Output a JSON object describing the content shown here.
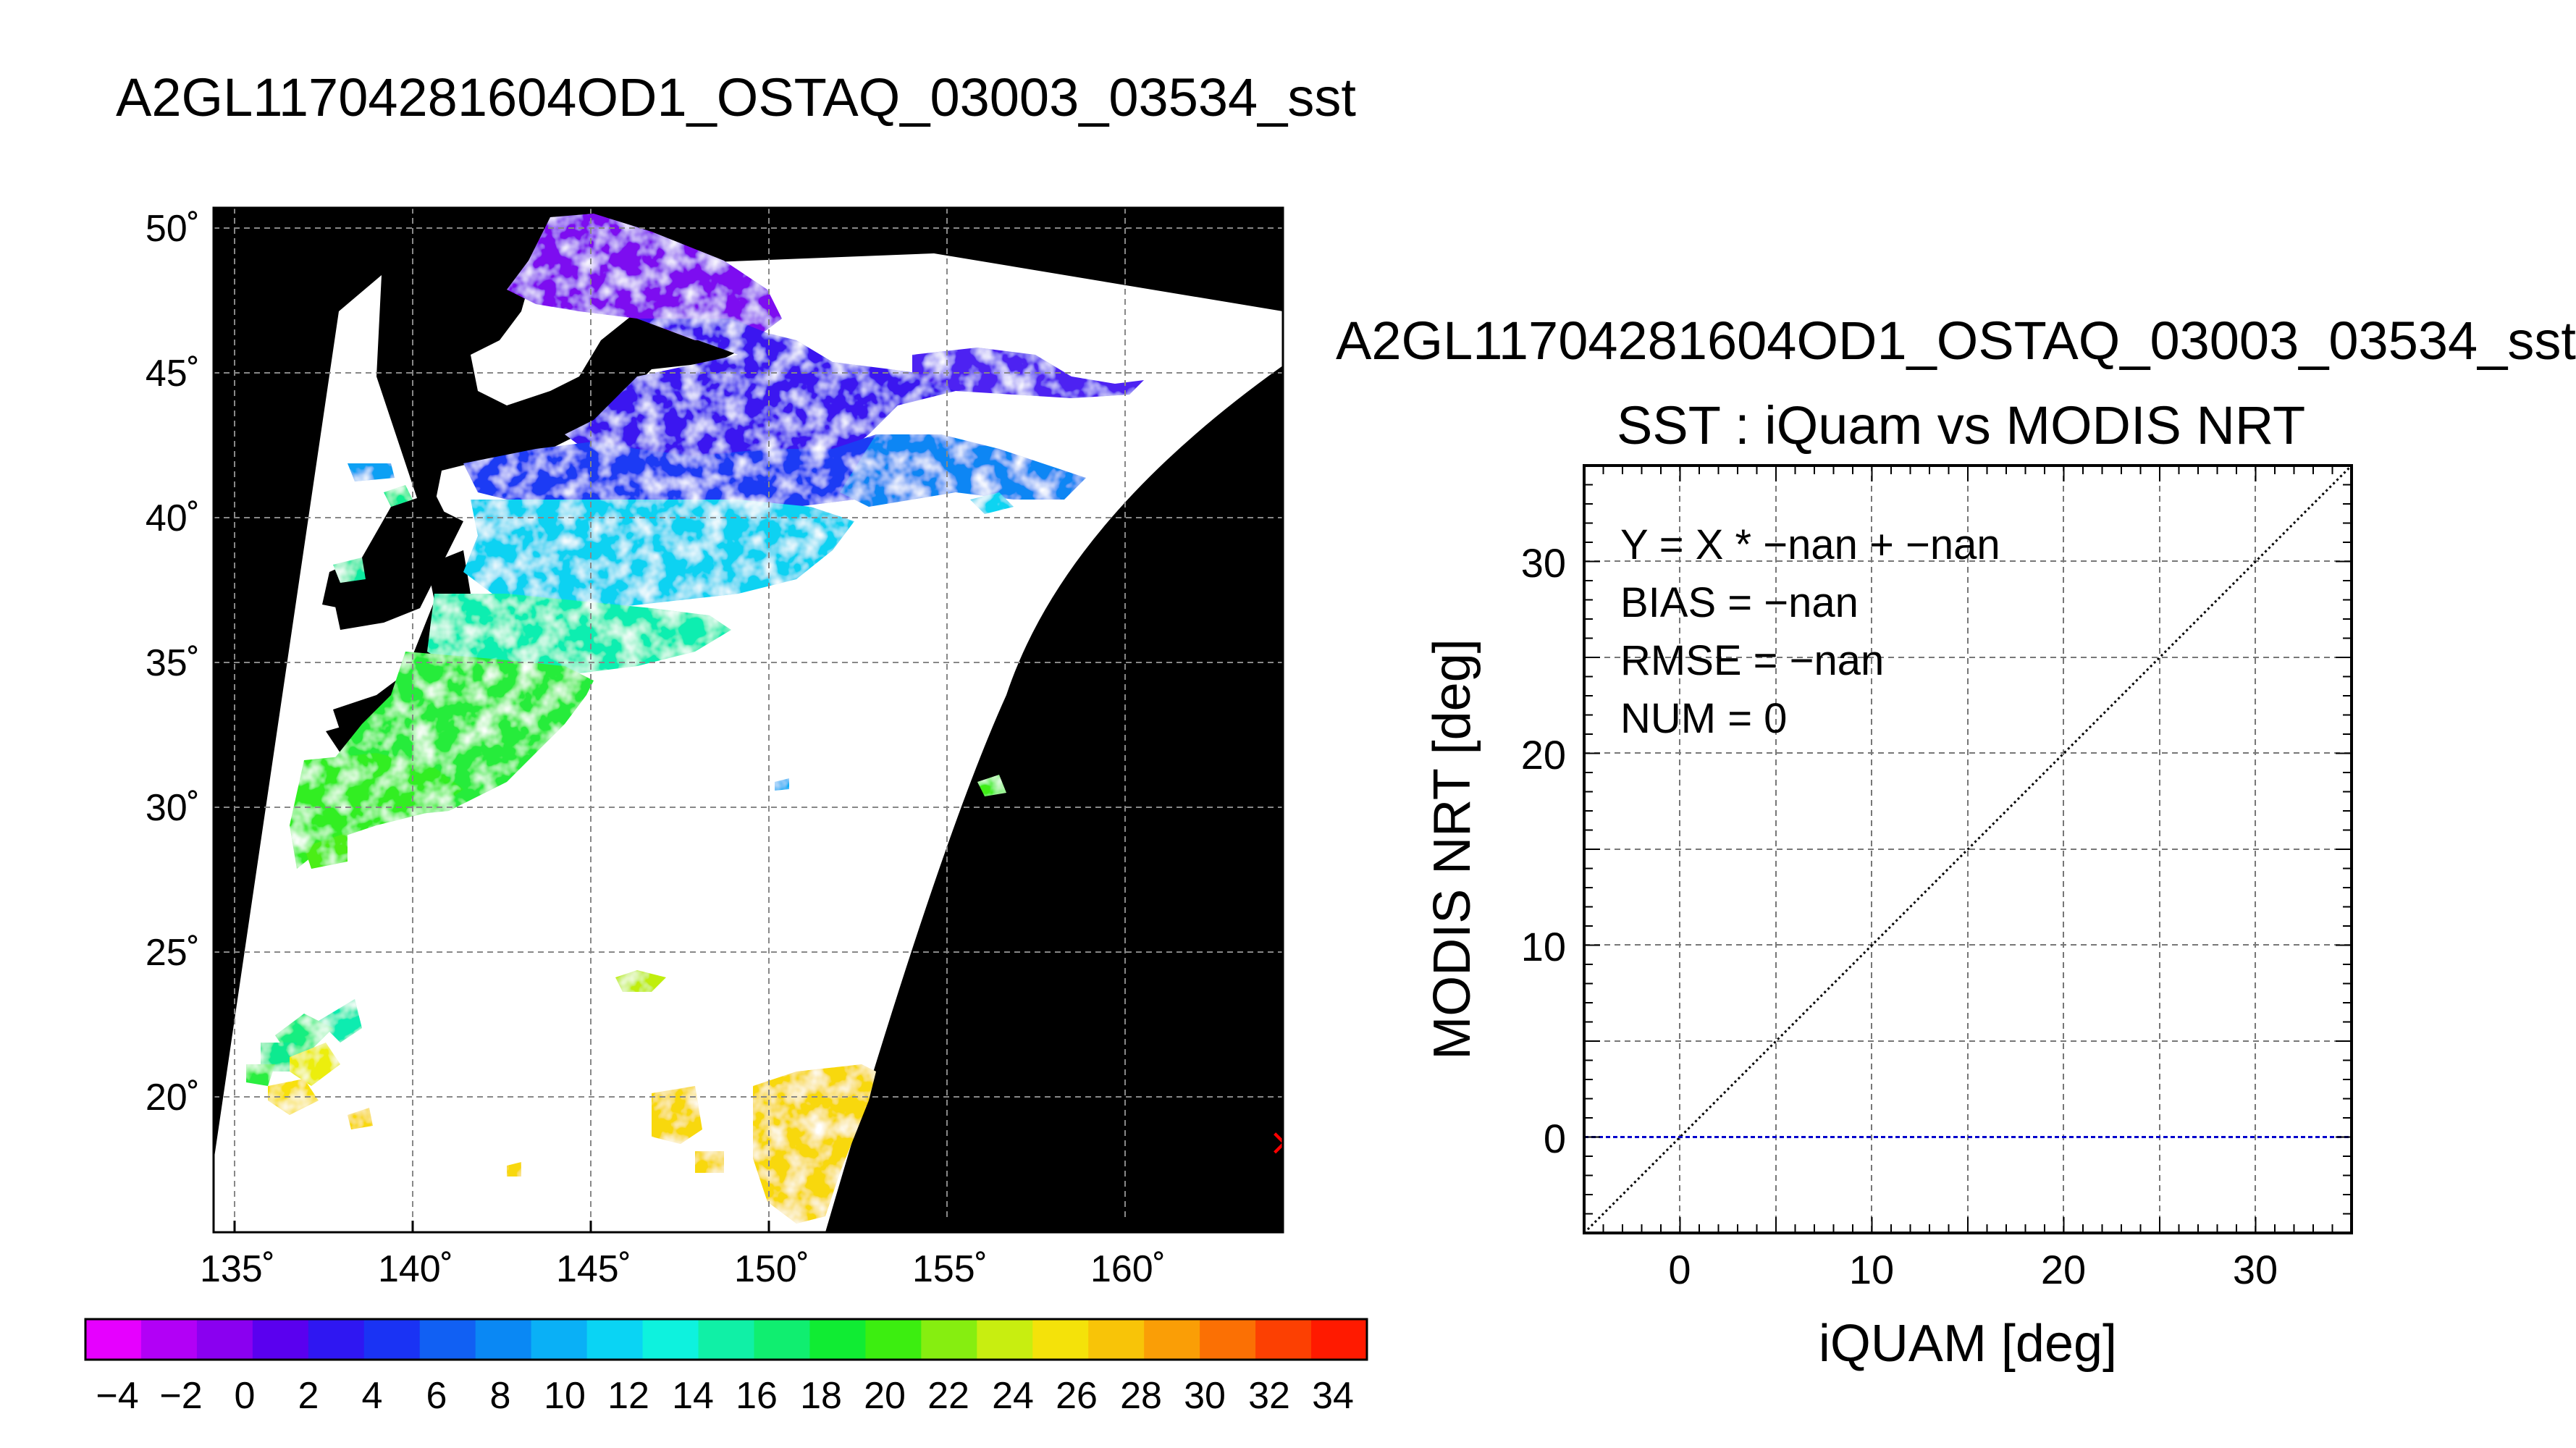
{
  "map_title": "A2GL11704281604OD1_OSTAQ_03003_03534_sst",
  "right_title": "A2GL11704281604OD1_OSTAQ_03003_03534_sst",
  "chart_data": [
    {
      "type": "heatmap",
      "title": "A2GL11704281604OD1_OSTAQ_03003_03534_sst",
      "xlabel": "",
      "ylabel": "",
      "x_ticks": [
        "135˚",
        "140˚",
        "145˚",
        "150˚",
        "155˚",
        "160˚"
      ],
      "y_ticks": [
        "50˚",
        "45˚",
        "40˚",
        "35˚",
        "30˚",
        "25˚",
        "20˚"
      ],
      "xlim": [
        134.5,
        164.5
      ],
      "ylim": [
        15.5,
        50.8
      ],
      "grid": true,
      "colorbar": {
        "ticks": [
          "−4",
          "−2",
          "0",
          "2",
          "4",
          "6",
          "8",
          "10",
          "12",
          "14",
          "16",
          "18",
          "20",
          "22",
          "24",
          "26",
          "28",
          "30",
          "32",
          "34"
        ],
        "range": [
          -5,
          35
        ],
        "colors": [
          "#e600ff",
          "#b200f6",
          "#8a00f0",
          "#5a00ef",
          "#2f17f2",
          "#1a33f4",
          "#1160f3",
          "#0a88f4",
          "#0ab0f6",
          "#0ad4f4",
          "#0ef2de",
          "#10f0a6",
          "#10ee70",
          "#10ec33",
          "#3cee10",
          "#86ee10",
          "#c8ee10",
          "#f4e20a",
          "#f8c408",
          "#fa9e06",
          "#fb7004",
          "#fc4002",
          "#ff1a00"
        ]
      },
      "marker": {
        "symbol": "×",
        "color": "#ff0000",
        "lon": 164.2,
        "lat": 18.2
      }
    },
    {
      "type": "scatter",
      "title": "SST : iQuam vs MODIS NRT",
      "xlabel": "iQUAM [deg]",
      "ylabel": "MODIS NRT [deg]",
      "xlim": [
        -5,
        35
      ],
      "ylim": [
        -5,
        35
      ],
      "x_ticks": [
        0,
        10,
        20,
        30
      ],
      "y_ticks": [
        0,
        10,
        20,
        30
      ],
      "grid": true,
      "points": [],
      "stats": [
        "Y = X * −nan + −nan",
        "BIAS = −nan",
        "RMSE = −nan",
        "NUM = 0"
      ],
      "lines": [
        {
          "name": "y=x",
          "style": "dotted",
          "color": "#000000",
          "x": [
            -5,
            35
          ],
          "y": [
            -5,
            35
          ]
        },
        {
          "name": "zero",
          "style": "dashed",
          "color": "#0000cc",
          "x": [
            -5,
            35
          ],
          "y": [
            0,
            0
          ]
        }
      ]
    }
  ]
}
